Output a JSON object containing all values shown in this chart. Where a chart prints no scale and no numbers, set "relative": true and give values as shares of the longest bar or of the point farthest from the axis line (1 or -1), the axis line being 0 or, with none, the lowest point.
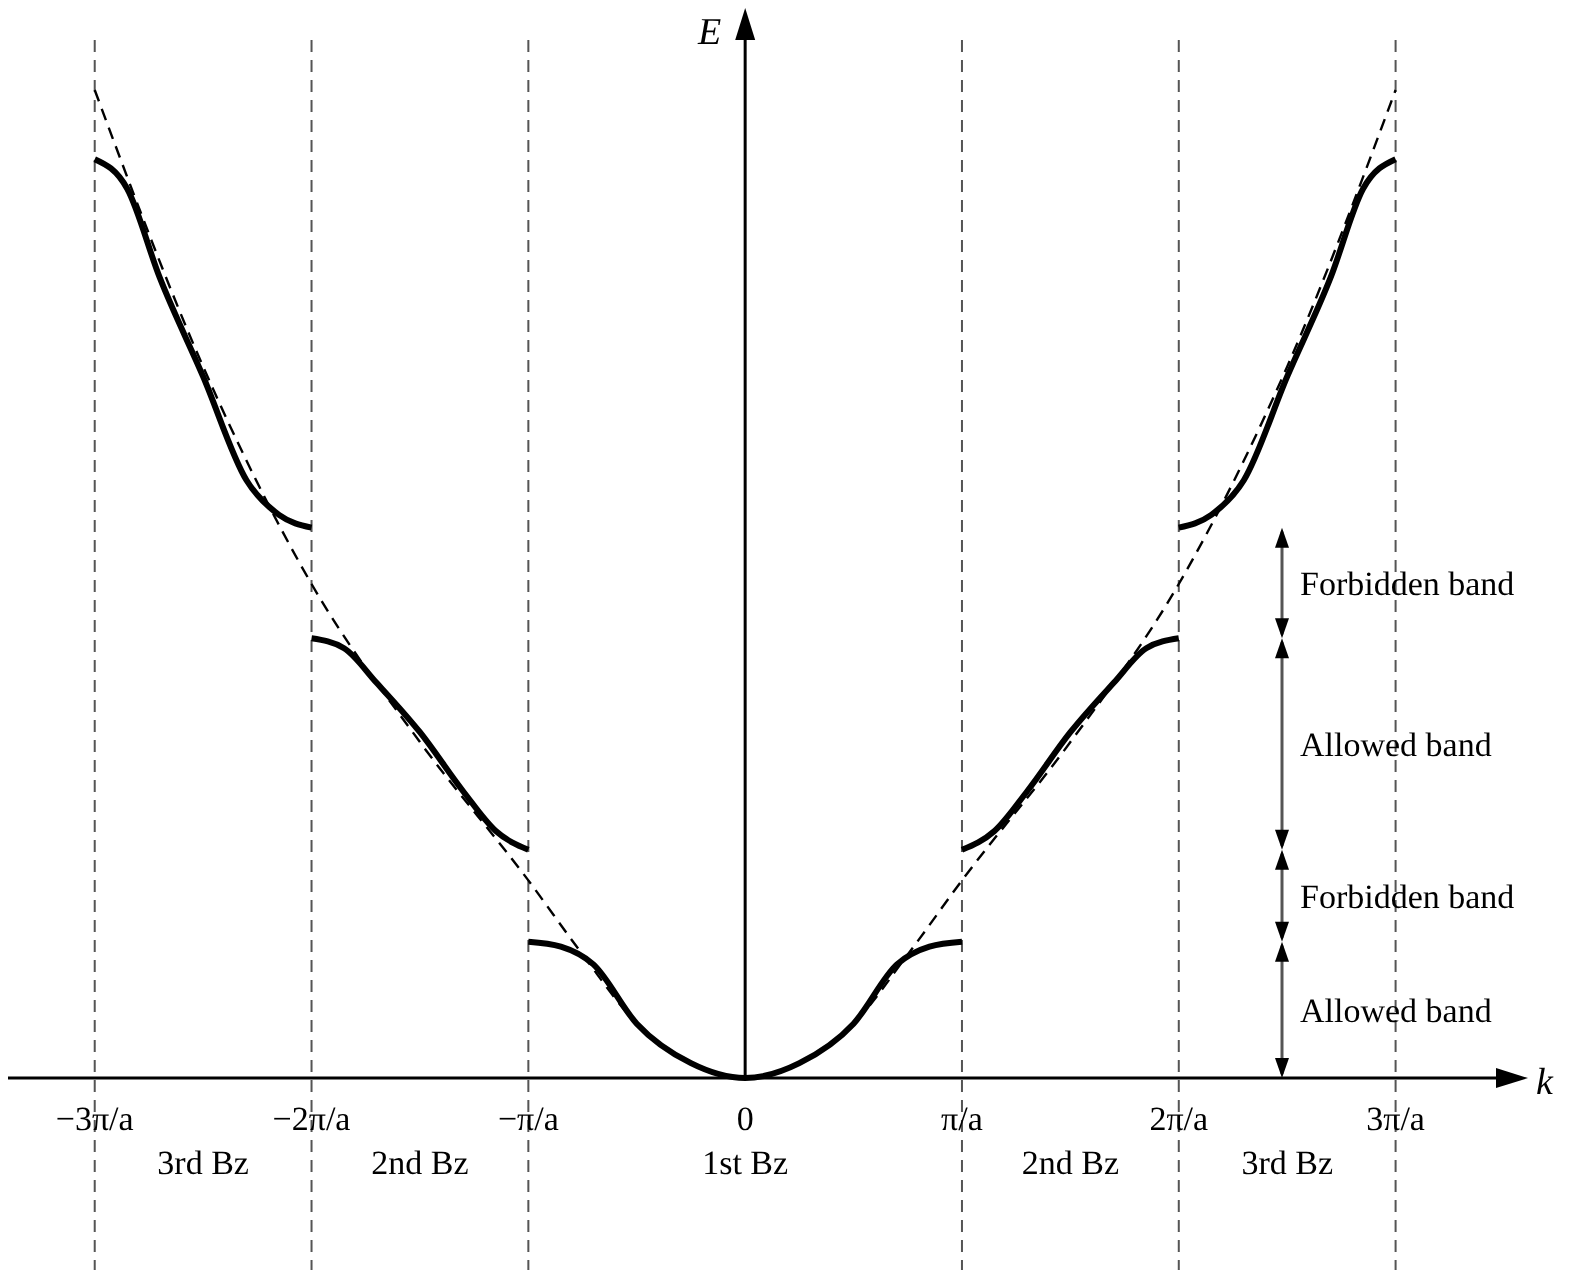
{
  "chart_data": {
    "type": "line",
    "relative": true,
    "xlabel": "k",
    "ylabel": "E",
    "tick_labels": "x",
    "grid": false,
    "xlim": [
      -3.4,
      3.5
    ],
    "xticks": [
      {
        "value": -3,
        "label": "−3π/a"
      },
      {
        "value": -2,
        "label": "−2π/a"
      },
      {
        "value": -1,
        "label": "−π/a"
      },
      0,
      {
        "value": 1,
        "label": "π/a"
      },
      {
        "value": 2,
        "label": "2π/a"
      },
      {
        "value": 3,
        "label": "3π/a"
      }
    ],
    "series": [
      {
        "color": "#000000",
        "line_style": "dashed",
        "x": [
          -3,
          -2.5,
          -2,
          -1.5,
          -1,
          -0.75,
          -0.5,
          -0.25,
          0,
          0.25,
          0.5,
          0.75,
          1,
          1.5,
          2,
          2.5,
          3
        ],
        "values": [
          1,
          0.72,
          0.5,
          0.34,
          0.2,
          0.125,
          0.055,
          0.015,
          0,
          0.015,
          0.055,
          0.125,
          0.2,
          0.34,
          0.5,
          0.72,
          1
        ]
      },
      {
        "color": "#000000",
        "line_style": "solid",
        "x": [
          -3,
          -2.85,
          -2.7,
          -2.5,
          -2.3,
          -2.15,
          -2
        ],
        "values": [
          0.93,
          0.9,
          0.81,
          0.71,
          0.605,
          0.57,
          0.557
        ]
      },
      {
        "color": "#000000",
        "line_style": "solid",
        "x": [
          -2,
          -1.85,
          -1.7,
          -1.5,
          -1.3,
          -1.15,
          -1
        ],
        "values": [
          0.445,
          0.435,
          0.4,
          0.35,
          0.29,
          0.25,
          0.231
        ]
      },
      {
        "color": "#000000",
        "line_style": "solid",
        "x": [
          -1,
          -0.85,
          -0.7,
          -0.5,
          -0.25,
          0,
          0.25,
          0.5,
          0.7,
          0.85,
          1
        ],
        "values": [
          0.138,
          0.133,
          0.115,
          0.055,
          0.015,
          0,
          0.015,
          0.055,
          0.115,
          0.133,
          0.138
        ]
      },
      {
        "color": "#000000",
        "line_style": "solid",
        "x": [
          1,
          1.15,
          1.3,
          1.5,
          1.7,
          1.85,
          2
        ],
        "values": [
          0.231,
          0.25,
          0.29,
          0.35,
          0.4,
          0.435,
          0.445
        ]
      },
      {
        "color": "#000000",
        "line_style": "solid",
        "x": [
          2,
          2.15,
          2.3,
          2.5,
          2.7,
          2.85,
          3
        ],
        "values": [
          0.557,
          0.57,
          0.605,
          0.71,
          0.81,
          0.9,
          0.93
        ]
      }
    ],
    "ref_lines": [
      {
        "axis": "x",
        "value": -3,
        "line_style": "dashed",
        "color": "#555555"
      },
      {
        "axis": "x",
        "value": -2,
        "line_style": "dashed",
        "color": "#555555"
      },
      {
        "axis": "x",
        "value": -1,
        "line_style": "dashed",
        "color": "#555555"
      },
      {
        "axis": "x",
        "value": 1,
        "line_style": "dashed",
        "color": "#555555"
      },
      {
        "axis": "x",
        "value": 2,
        "line_style": "dashed",
        "color": "#555555"
      },
      {
        "axis": "x",
        "value": 3,
        "line_style": "dashed",
        "color": "#555555"
      }
    ],
    "annotations": [
      "3rd Bz",
      "2nd Bz",
      "1st Bz",
      "2nd Bz",
      "3rd Bz",
      "Allowed band",
      "Forbidden band",
      "Allowed band",
      "Forbidden band"
    ]
  }
}
